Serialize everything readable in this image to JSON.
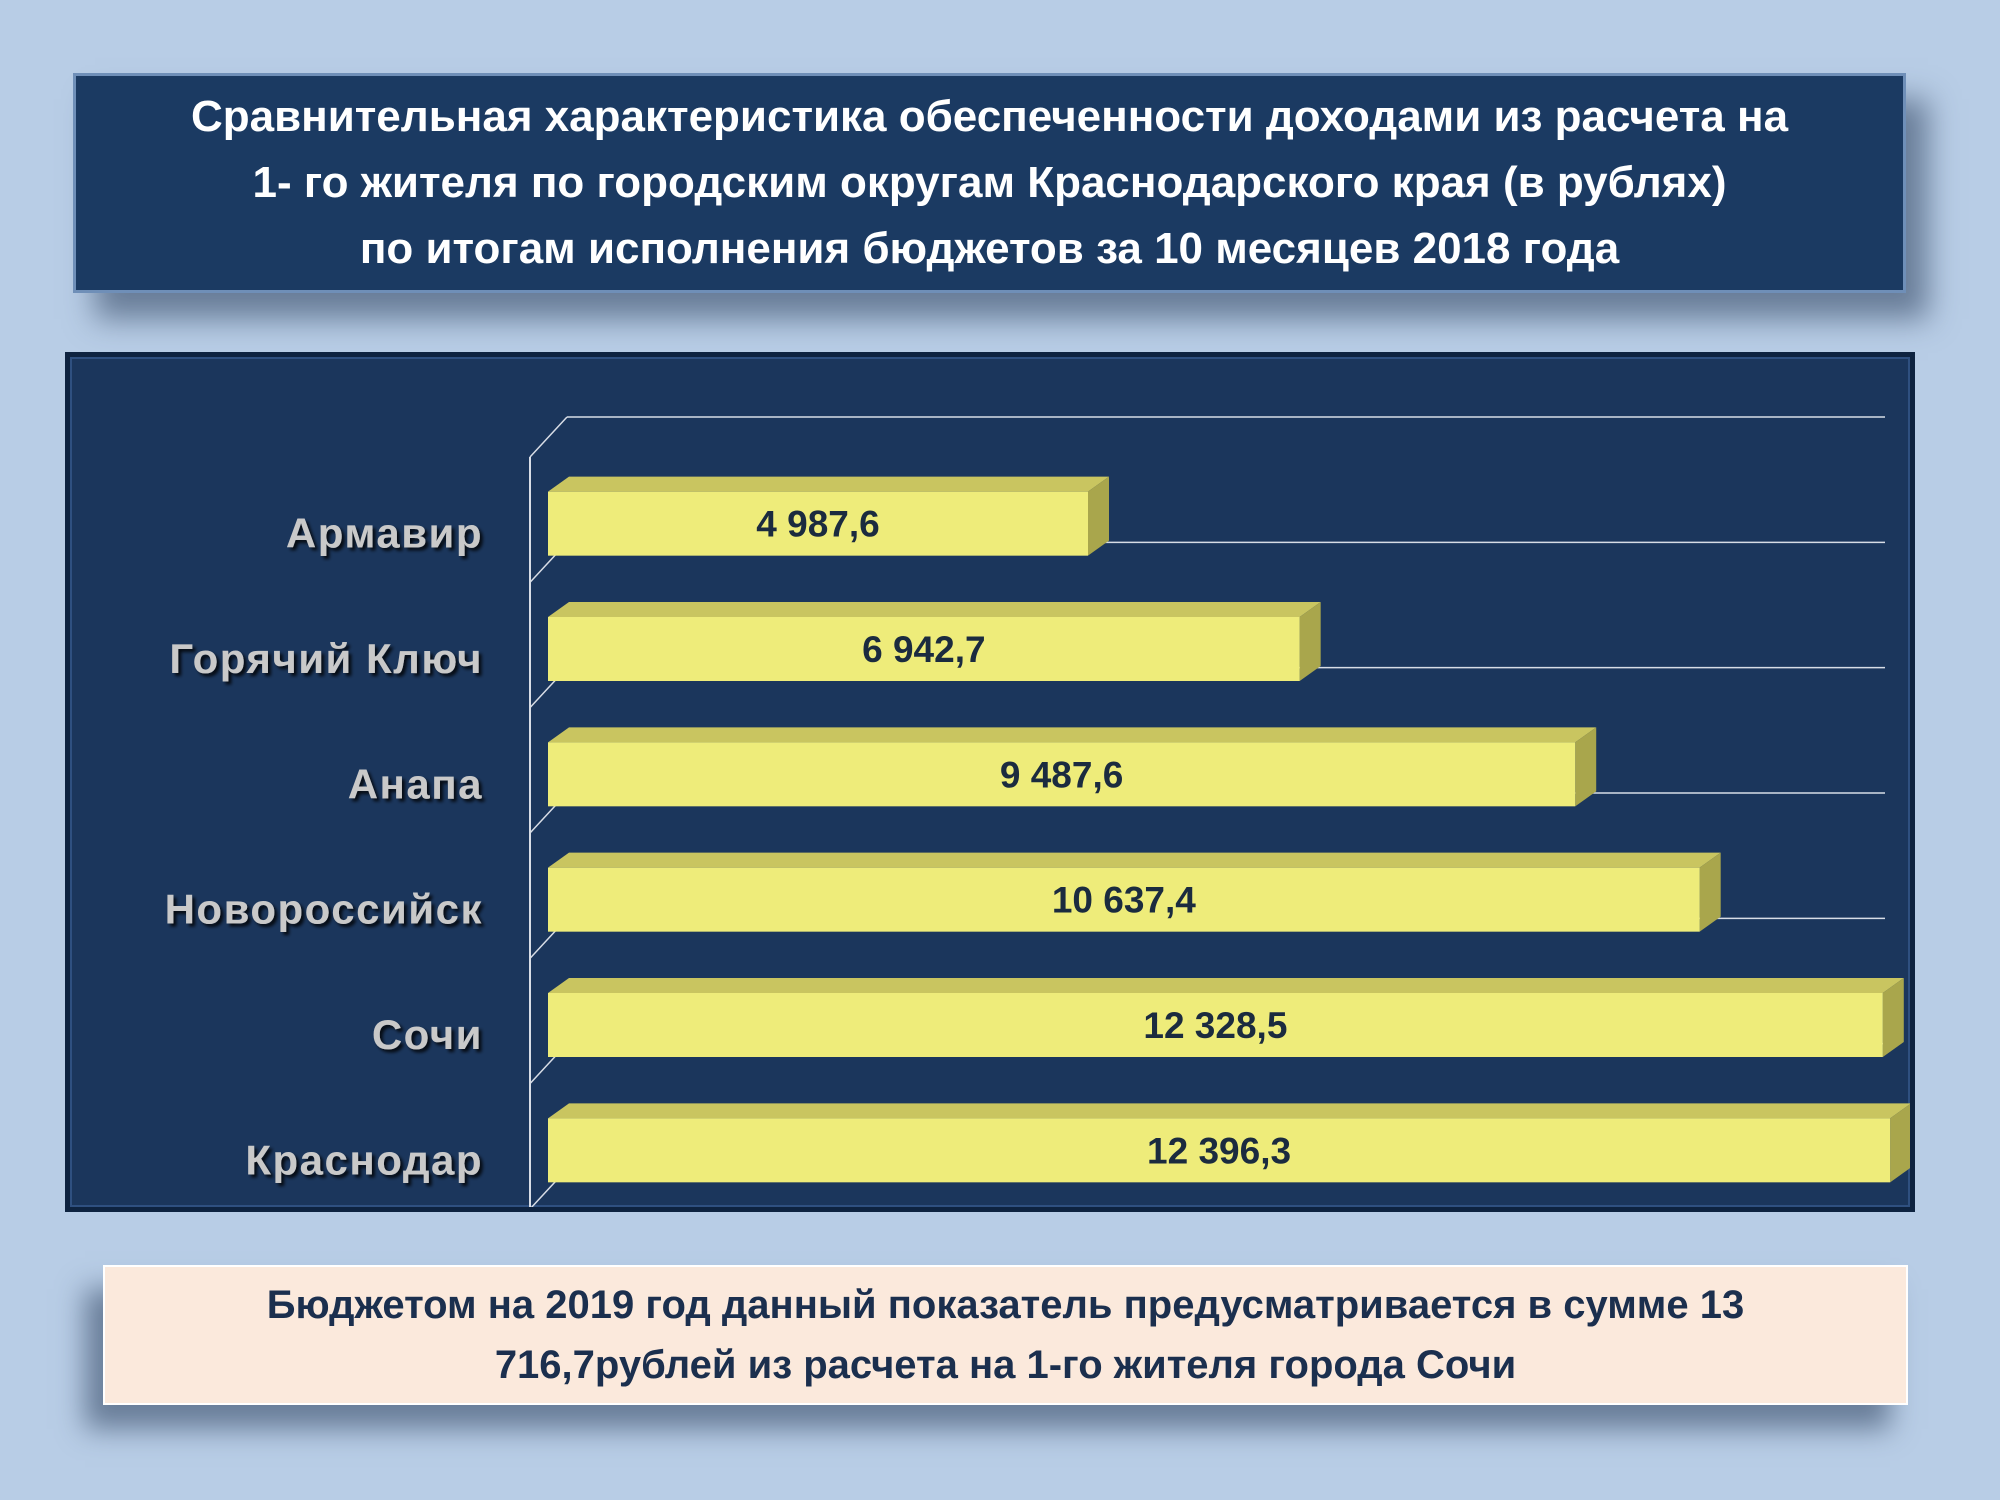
{
  "title": {
    "lines": [
      "Сравнительная характеристика  обеспеченности доходами из расчета на",
      "1- го жителя по городским округам Краснодарского края  (в рублях)",
      "по итогам исполнения бюджетов за 10 месяцев 2018 года"
    ]
  },
  "note": {
    "lines": [
      "Бюджетом на 2019 год  данный показатель предусматривается в сумме  13",
      "716,7рублей из расчета на 1-го жителя города Сочи"
    ]
  },
  "colors": {
    "bar_front": "#eeec7a",
    "bar_top": "#c9c560",
    "bar_side": "#a9a64c",
    "grid": "#d8dde6",
    "label": "#c9c9c9",
    "value_text": "#1b2b3f"
  },
  "chart_data": {
    "type": "bar",
    "orientation": "horizontal",
    "categories": [
      "Армавир",
      "Горячий Ключ",
      "Анапа",
      "Новороссийск",
      "Сочи",
      "Краснодар"
    ],
    "values": [
      4987.6,
      6942.7,
      9487.6,
      10637.4,
      12328.5,
      12396.3
    ],
    "value_labels": [
      "4 987,6",
      "6 942,7",
      "9 487,6",
      "10 637,4",
      "12 328,5",
      "12 396,3"
    ],
    "xlim": [
      0,
      18000
    ],
    "grid": true
  }
}
